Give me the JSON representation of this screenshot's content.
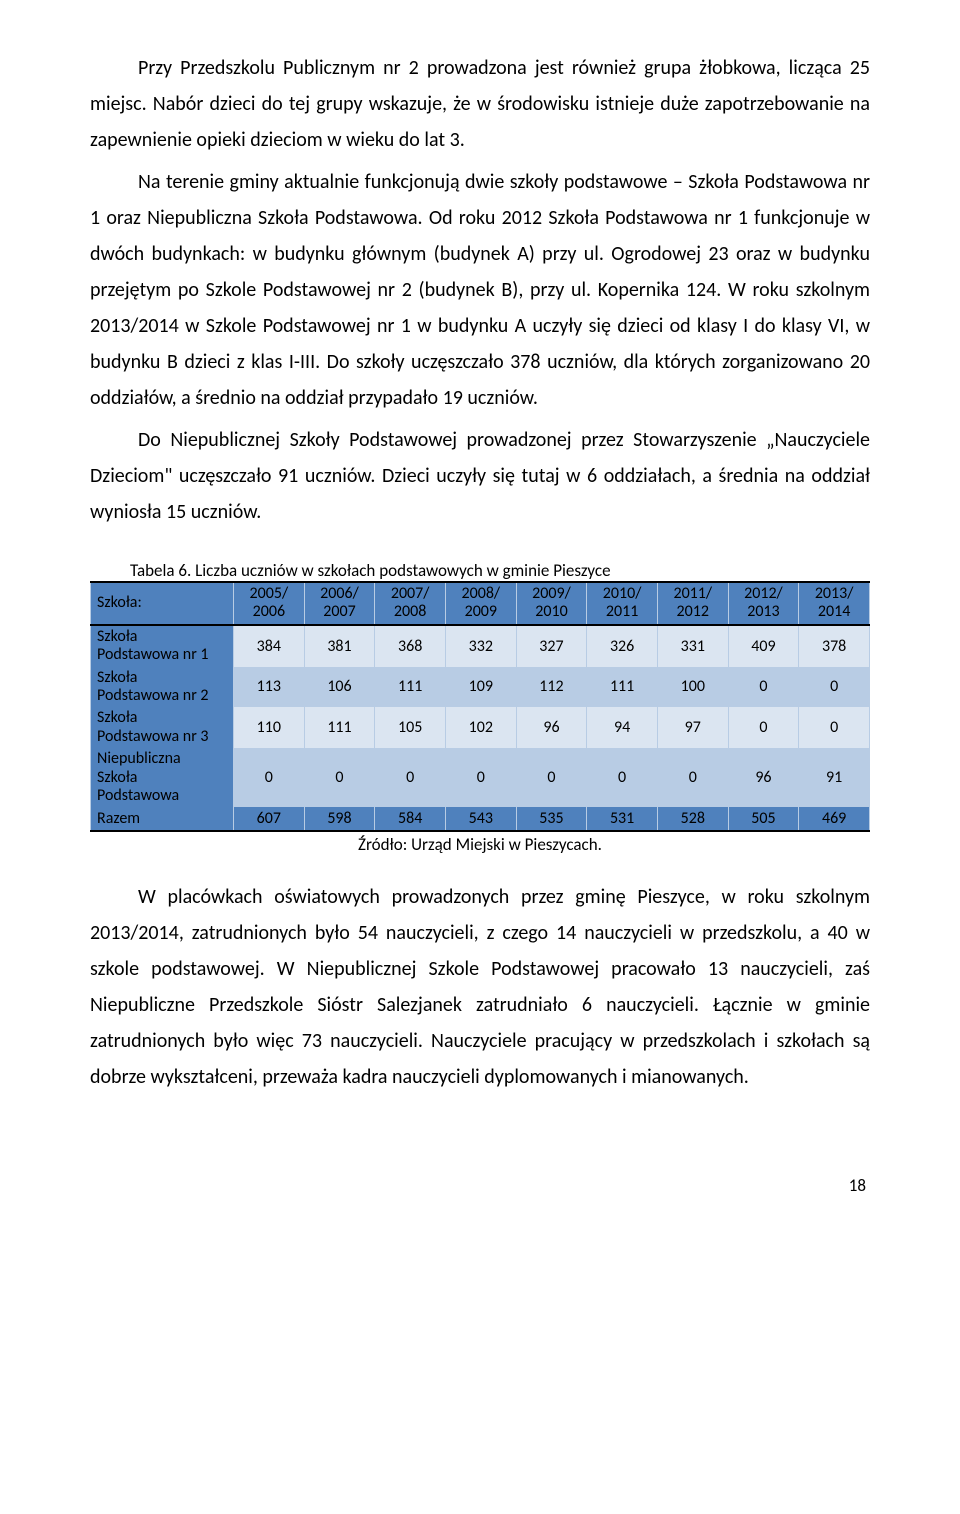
{
  "paragraphs": {
    "p1": "Przy Przedszkolu Publicznym nr 2 prowadzona jest również grupa żłobkowa, licząca 25 miejsc. Nabór dzieci do tej grupy wskazuje, że w środowisku istnieje duże zapotrzebowanie na zapewnienie opieki dzieciom w wieku do lat 3.",
    "p2": "Na terenie gminy aktualnie funkcjonują dwie szkoły podstawowe – Szkoła Podstawowa nr 1 oraz Niepubliczna Szkoła Podstawowa. Od roku 2012 Szkoła Podstawowa nr 1 funkcjonuje w dwóch budynkach: w budynku głównym (budynek A) przy ul. Ogrodowej 23 oraz w budynku przejętym po Szkole Podstawowej nr 2 (budynek B), przy ul. Kopernika 124. W roku szkolnym 2013/2014 w Szkole Podstawowej nr 1 w budynku A uczyły się dzieci od klasy I do klasy VI, w budynku B dzieci z klas I-III. Do szkoły uczęszczało 378 uczniów, dla których zorganizowano 20 oddziałów, a średnio na oddział przypadało 19 uczniów.",
    "p3": "Do Niepublicznej Szkoły Podstawowej prowadzonej przez Stowarzyszenie „Nauczyciele Dzieciom\" uczęszczało 91 uczniów. Dzieci uczyły się tutaj w 6 oddziałach, a średnia na oddział wyniosła 15 uczniów.",
    "p4": "W placówkach oświatowych prowadzonych przez gminę Pieszyce, w roku szkolnym 2013/2014, zatrudnionych było 54 nauczycieli, z czego 14 nauczycieli w przedszkolu, a 40 w szkole podstawowej. W Niepublicznej Szkole Podstawowej pracowało 13 nauczycieli, zaś Niepubliczne Przedszkole Sióstr Salezjanek zatrudniało 6 nauczycieli. Łącznie w gminie zatrudnionych było więc 73 nauczycieli. Nauczyciele pracujący w przedszkolach i szkołach są dobrze wykształceni, przeważa kadra nauczycieli dyplomowanych i mianowanych."
  },
  "table": {
    "caption": "Tabela 6. Liczba uczniów w szkołach podstawowych w gminie Pieszyce",
    "header_label": "Szkoła:",
    "year_cols": [
      {
        "top": "2005/",
        "bot": "2006"
      },
      {
        "top": "2006/",
        "bot": "2007"
      },
      {
        "top": "2007/",
        "bot": "2008"
      },
      {
        "top": "2008/",
        "bot": "2009"
      },
      {
        "top": "2009/",
        "bot": "2010"
      },
      {
        "top": "2010/",
        "bot": "2011"
      },
      {
        "top": "2011/",
        "bot": "2012"
      },
      {
        "top": "2012/",
        "bot": "2013"
      },
      {
        "top": "2013/",
        "bot": "2014"
      }
    ],
    "rows": [
      {
        "label_l1": "Szkoła",
        "label_l2": "Podstawowa nr 1",
        "label_l3": "",
        "vals": [
          "384",
          "381",
          "368",
          "332",
          "327",
          "326",
          "331",
          "409",
          "378"
        ],
        "band": "even"
      },
      {
        "label_l1": "Szkoła",
        "label_l2": "Podstawowa nr 2",
        "label_l3": "",
        "vals": [
          "113",
          "106",
          "111",
          "109",
          "112",
          "111",
          "100",
          "0",
          "0"
        ],
        "band": "odd"
      },
      {
        "label_l1": "Szkoła",
        "label_l2": "Podstawowa nr 3",
        "label_l3": "",
        "vals": [
          "110",
          "111",
          "105",
          "102",
          "96",
          "94",
          "97",
          "0",
          "0"
        ],
        "band": "even"
      },
      {
        "label_l1": "Niepubliczna",
        "label_l2": "Szkoła",
        "label_l3": "Podstawowa",
        "vals": [
          "0",
          "0",
          "0",
          "0",
          "0",
          "0",
          "0",
          "96",
          "91"
        ],
        "band": "odd"
      }
    ],
    "total": {
      "label": "Razem",
      "vals": [
        "607",
        "598",
        "584",
        "543",
        "535",
        "531",
        "528",
        "505",
        "469"
      ]
    },
    "source": "Źródło: Urząd Miejski w Pieszycach."
  },
  "page_number": "18",
  "colors": {
    "header_bg": "#4f81bd",
    "band_even": "#dbe5f1",
    "band_odd": "#b8cce4",
    "border": "#b8cce4",
    "text": "#000000",
    "background": "#ffffff"
  }
}
